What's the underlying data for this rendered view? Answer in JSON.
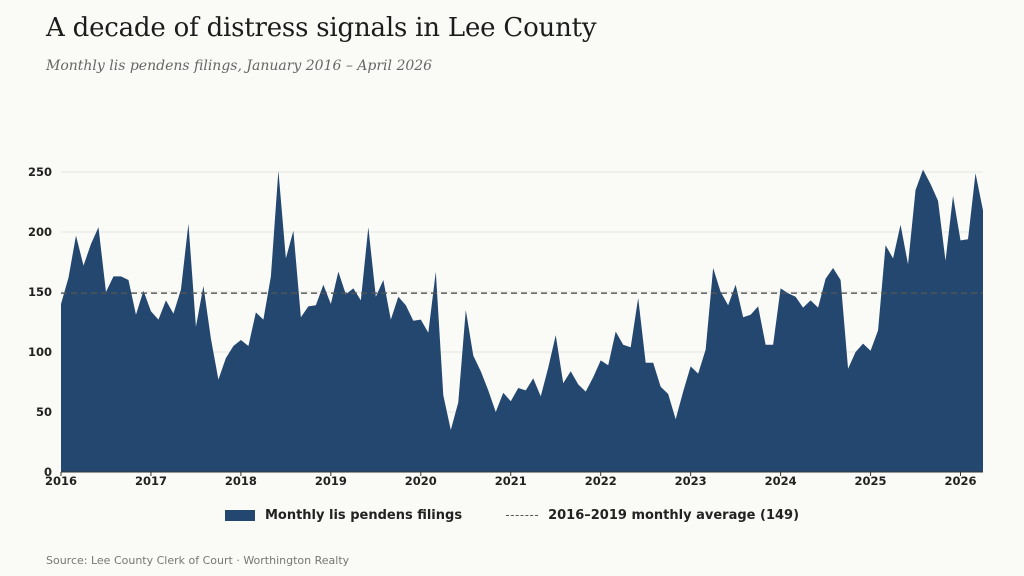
{
  "header": {
    "title": "A decade of distress signals in Lee County",
    "subtitle": "Monthly lis pendens filings, January 2016 – April 2026"
  },
  "legend": {
    "series_label": "Monthly lis pendens filings",
    "average_label": "2016–2019 monthly average (149)"
  },
  "footer": {
    "source": "Source: Lee County Clerk of Court · Worthington Realty"
  },
  "colors": {
    "area": "#23476f",
    "average_line": "#555555",
    "grid": "#e4e4e0",
    "axis": "#333333"
  },
  "chart_data": {
    "type": "area",
    "x_start": "2016-01",
    "x_end": "2026-04",
    "xticks": [
      "2016",
      "2017",
      "2018",
      "2019",
      "2020",
      "2021",
      "2022",
      "2023",
      "2024",
      "2025",
      "2026"
    ],
    "yticks": [
      0,
      50,
      100,
      150,
      200,
      250
    ],
    "ylim": [
      0,
      260
    ],
    "grid": true,
    "legend_position": "bottom",
    "average": 149,
    "series": [
      {
        "name": "Monthly lis pendens filings",
        "values": [
          140,
          162,
          197,
          172,
          190,
          204,
          150,
          163,
          163,
          160,
          131,
          151,
          134,
          127,
          143,
          132,
          152,
          207,
          121,
          155,
          111,
          77,
          95,
          105,
          110,
          105,
          133,
          127,
          163,
          251,
          178,
          201,
          129,
          138,
          139,
          156,
          140,
          167,
          148,
          153,
          143,
          204,
          146,
          160,
          127,
          146,
          139,
          126,
          127,
          116,
          167,
          64,
          35,
          58,
          135,
          97,
          84,
          68,
          50,
          66,
          59,
          70,
          68,
          78,
          63,
          87,
          114,
          74,
          84,
          73,
          67,
          79,
          93,
          89,
          117,
          106,
          104,
          145,
          91,
          91,
          71,
          65,
          44,
          67,
          88,
          82,
          102,
          170,
          150,
          139,
          156,
          129,
          131,
          138,
          106,
          106,
          153,
          149,
          146,
          137,
          143,
          137,
          161,
          170,
          160,
          86,
          100,
          107,
          101,
          118,
          189,
          178,
          206,
          173,
          235,
          252,
          240,
          226,
          176,
          230,
          193,
          194,
          249,
          218
        ]
      }
    ]
  }
}
